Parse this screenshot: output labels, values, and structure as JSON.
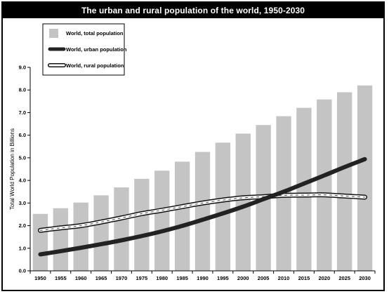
{
  "chart_data": {
    "type": "bar",
    "title": "The urban and rural population of the world, 1950-2030",
    "xlabel": "",
    "ylabel": "Total World Population in Billions",
    "categories": [
      "1950",
      "1955",
      "1960",
      "1965",
      "1970",
      "1975",
      "1980",
      "1985",
      "1990",
      "1995",
      "2000",
      "2005",
      "2010",
      "2015",
      "2020",
      "2025",
      "2030"
    ],
    "ylim": [
      0,
      9
    ],
    "yticks": [
      "0.0",
      "1.0",
      "2.0",
      "3.0",
      "4.0",
      "5.0",
      "6.0",
      "7.0",
      "8.0",
      "9.0"
    ],
    "grid": false,
    "legend_placement": "top-left",
    "series": [
      {
        "name": "World, total population",
        "kind": "bar",
        "color": "#c4c4c4",
        "values": [
          2.52,
          2.77,
          3.02,
          3.34,
          3.69,
          4.07,
          4.43,
          4.83,
          5.26,
          5.67,
          6.07,
          6.45,
          6.84,
          7.21,
          7.58,
          7.9,
          8.2
        ]
      },
      {
        "name": "World, urban population",
        "kind": "line",
        "color": "#222222",
        "values": [
          0.73,
          0.87,
          1.02,
          1.18,
          1.35,
          1.54,
          1.75,
          1.99,
          2.26,
          2.54,
          2.84,
          3.17,
          3.5,
          3.86,
          4.22,
          4.59,
          4.94
        ]
      },
      {
        "name": "World, rural population",
        "kind": "line",
        "color": "#ffffff",
        "outline": "#111111",
        "values": [
          1.79,
          1.9,
          2.0,
          2.16,
          2.34,
          2.53,
          2.68,
          2.84,
          3.0,
          3.13,
          3.23,
          3.28,
          3.34,
          3.35,
          3.36,
          3.31,
          3.26
        ]
      }
    ]
  }
}
